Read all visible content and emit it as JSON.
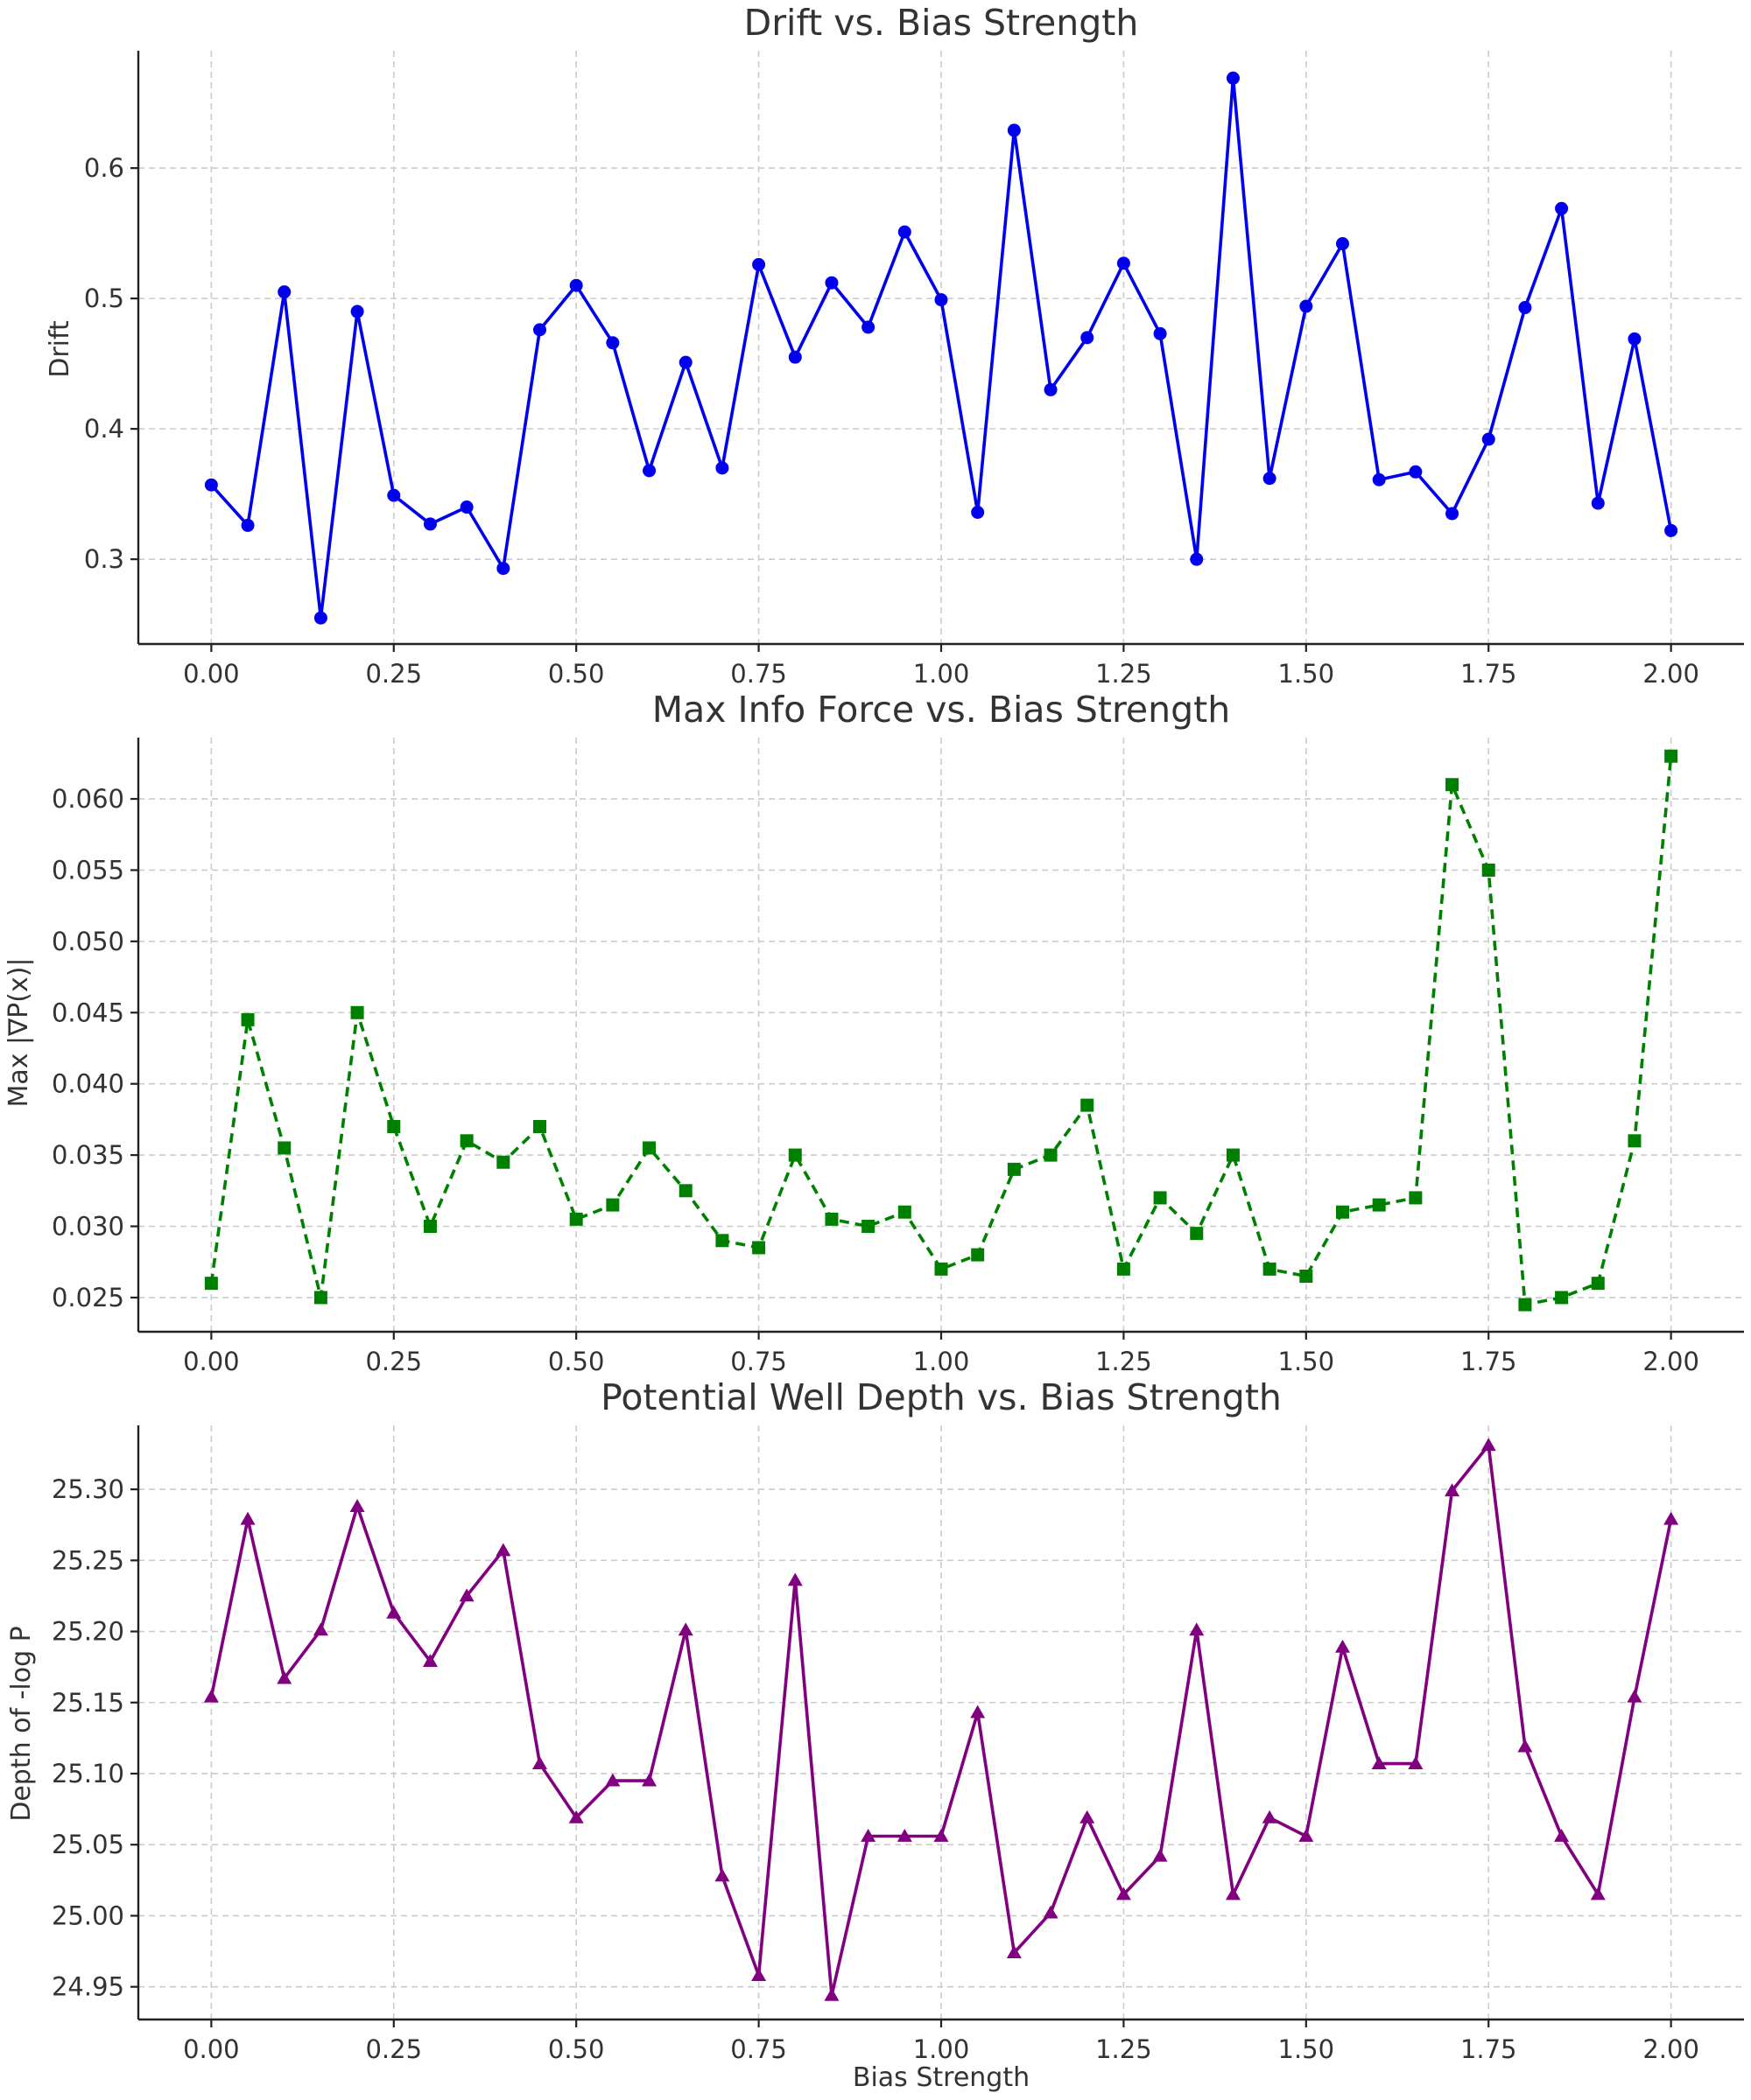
{
  "chart_data": [
    {
      "type": "line",
      "title": "Drift vs. Bias Strength",
      "xlabel": "",
      "ylabel": "Drift",
      "xlim": [
        -0.1,
        2.1
      ],
      "ylim": [
        0.235,
        0.69
      ],
      "xticks": [
        "0.00",
        "0.25",
        "0.50",
        "0.75",
        "1.00",
        "1.25",
        "1.50",
        "1.75",
        "2.00"
      ],
      "yticks": [
        "0.3",
        "0.4",
        "0.5",
        "0.6"
      ],
      "grid": true,
      "style": {
        "color": "#0000ee",
        "marker": "circle",
        "linestyle": "solid"
      },
      "x": [
        0.0,
        0.05,
        0.1,
        0.15,
        0.2,
        0.25,
        0.3,
        0.35,
        0.4,
        0.45,
        0.5,
        0.55,
        0.6,
        0.65,
        0.7,
        0.75,
        0.8,
        0.85,
        0.9,
        0.95,
        1.0,
        1.05,
        1.1,
        1.15,
        1.2,
        1.25,
        1.3,
        1.35,
        1.4,
        1.45,
        1.5,
        1.55,
        1.6,
        1.65,
        1.7,
        1.75,
        1.8,
        1.85,
        1.9,
        1.95,
        2.0
      ],
      "y": [
        0.357,
        0.326,
        0.505,
        0.255,
        0.49,
        0.349,
        0.327,
        0.34,
        0.293,
        0.476,
        0.51,
        0.466,
        0.368,
        0.451,
        0.37,
        0.526,
        0.455,
        0.512,
        0.478,
        0.551,
        0.499,
        0.336,
        0.629,
        0.43,
        0.47,
        0.527,
        0.473,
        0.3,
        0.669,
        0.362,
        0.494,
        0.542,
        0.361,
        0.367,
        0.335,
        0.392,
        0.493,
        0.569,
        0.343,
        0.469,
        0.322
      ]
    },
    {
      "type": "line",
      "title": "Max Info Force vs. Bias Strength",
      "xlabel": "",
      "ylabel": "Max |∇P(x)|",
      "xlim": [
        -0.1,
        2.1
      ],
      "ylim": [
        0.0226,
        0.0643
      ],
      "xticks": [
        "0.00",
        "0.25",
        "0.50",
        "0.75",
        "1.00",
        "1.25",
        "1.50",
        "1.75",
        "2.00"
      ],
      "yticks": [
        "0.025",
        "0.030",
        "0.035",
        "0.040",
        "0.045",
        "0.050",
        "0.055",
        "0.060"
      ],
      "grid": true,
      "style": {
        "color": "#008000",
        "marker": "square",
        "linestyle": "dashed"
      },
      "x": [
        0.0,
        0.05,
        0.1,
        0.15,
        0.2,
        0.25,
        0.3,
        0.35,
        0.4,
        0.45,
        0.5,
        0.55,
        0.6,
        0.65,
        0.7,
        0.75,
        0.8,
        0.85,
        0.9,
        0.95,
        1.0,
        1.05,
        1.1,
        1.15,
        1.2,
        1.25,
        1.3,
        1.35,
        1.4,
        1.45,
        1.5,
        1.55,
        1.6,
        1.65,
        1.7,
        1.75,
        1.8,
        1.85,
        1.9,
        1.95,
        2.0
      ],
      "y": [
        0.026,
        0.0445,
        0.0355,
        0.025,
        0.045,
        0.037,
        0.03,
        0.036,
        0.0345,
        0.037,
        0.0305,
        0.0315,
        0.0355,
        0.0325,
        0.029,
        0.0285,
        0.035,
        0.0305,
        0.03,
        0.031,
        0.027,
        0.028,
        0.034,
        0.035,
        0.0385,
        0.027,
        0.032,
        0.0295,
        0.035,
        0.027,
        0.0265,
        0.031,
        0.0315,
        0.032,
        0.061,
        0.055,
        0.0245,
        0.025,
        0.026,
        0.036,
        0.063
      ]
    },
    {
      "type": "line",
      "title": "Potential Well Depth vs. Bias Strength",
      "xlabel": "Bias Strength",
      "ylabel": "Depth of -log P",
      "xlim": [
        -0.1,
        2.1
      ],
      "ylim": [
        24.927,
        25.345
      ],
      "xticks": [
        "0.00",
        "0.25",
        "0.50",
        "0.75",
        "1.00",
        "1.25",
        "1.50",
        "1.75",
        "2.00"
      ],
      "yticks": [
        "24.95",
        "25.00",
        "25.05",
        "25.10",
        "25.15",
        "25.20",
        "25.25",
        "25.30"
      ],
      "grid": true,
      "style": {
        "color": "#800080",
        "marker": "triangle",
        "linestyle": "solid"
      },
      "x": [
        0.0,
        0.05,
        0.1,
        0.15,
        0.2,
        0.25,
        0.3,
        0.35,
        0.4,
        0.45,
        0.5,
        0.55,
        0.6,
        0.65,
        0.7,
        0.75,
        0.8,
        0.85,
        0.9,
        0.95,
        1.0,
        1.05,
        1.1,
        1.15,
        1.2,
        1.25,
        1.3,
        1.35,
        1.4,
        1.45,
        1.5,
        1.55,
        1.6,
        1.65,
        1.7,
        1.75,
        1.8,
        1.85,
        1.9,
        1.95,
        2.0
      ],
      "y": [
        25.154,
        25.279,
        25.167,
        25.201,
        25.288,
        25.213,
        25.179,
        25.225,
        25.257,
        25.107,
        25.069,
        25.095,
        25.095,
        25.201,
        25.028,
        24.958,
        25.236,
        24.944,
        25.056,
        25.056,
        25.056,
        25.143,
        24.974,
        25.002,
        25.069,
        25.015,
        25.042,
        25.201,
        25.015,
        25.069,
        25.056,
        25.189,
        25.107,
        25.107,
        25.299,
        25.331,
        25.119,
        25.056,
        25.015,
        25.154,
        25.279
      ]
    }
  ]
}
